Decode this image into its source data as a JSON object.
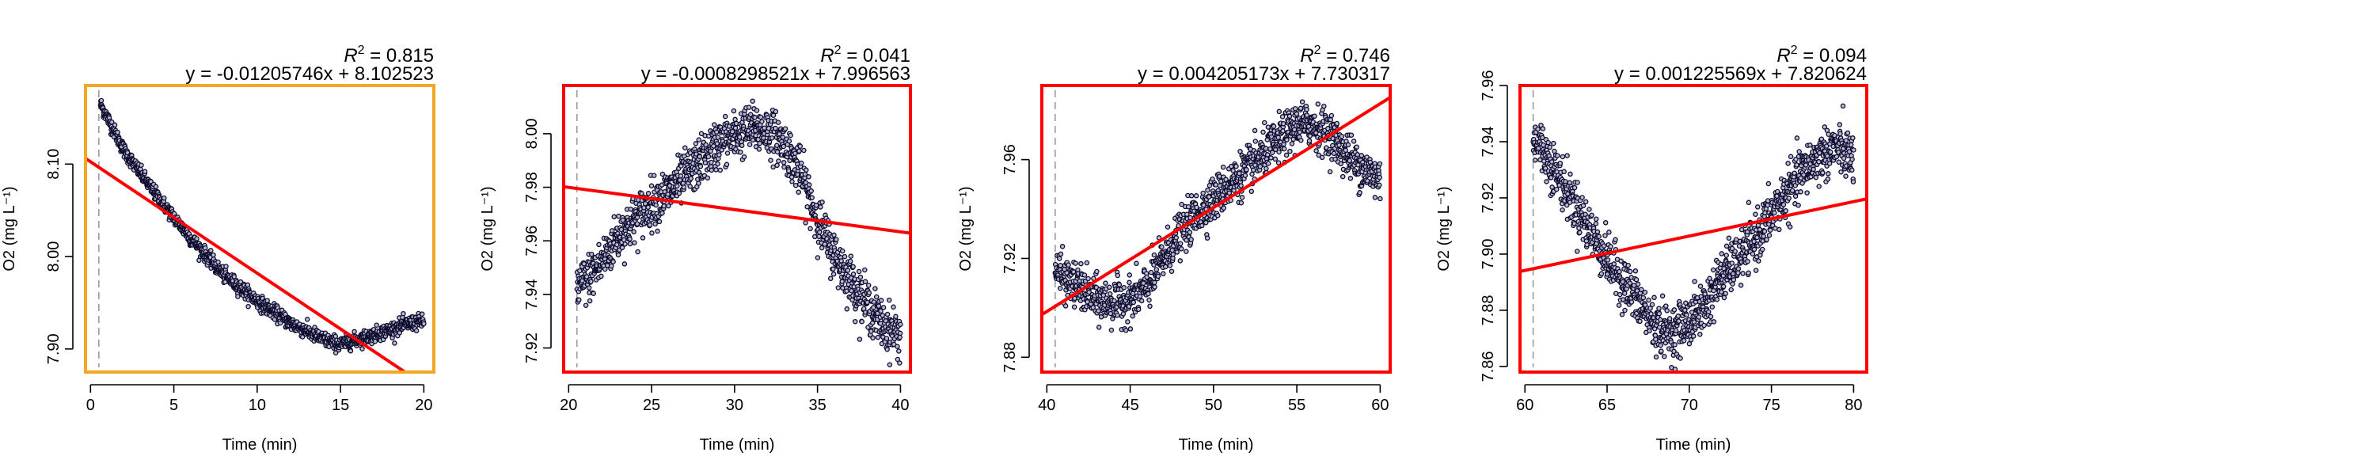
{
  "chart_data": [
    {
      "type": "scatter",
      "title": "",
      "r2_label": "R",
      "r2_sup": "2",
      "r2_value": " = 0.815",
      "equation": "y = -0.01205746x + 8.102523",
      "xlabel": "Time (min)",
      "ylabel": "O2 (mg L⁻¹)",
      "xlim": [
        -0.3,
        20.6
      ],
      "ylim": [
        7.875,
        8.185
      ],
      "xticks": [
        0,
        5,
        10,
        15,
        20
      ],
      "yticks": [
        7.9,
        8.0,
        8.1
      ],
      "ytick_labels": [
        "7.90",
        "8.00",
        "8.10"
      ],
      "frame_color": "#f5a623",
      "line_color": "#ff0000",
      "point_color": "#0d0d2b",
      "dashed_x": 0.5,
      "fit": {
        "slope": -0.01205746,
        "intercept": 8.102523
      },
      "curve": {
        "x": [
          0.6,
          2,
          4,
          6,
          8,
          10,
          12,
          14,
          15,
          16,
          17.5,
          19,
          20
        ],
        "y": [
          8.165,
          8.115,
          8.065,
          8.02,
          7.98,
          7.952,
          7.928,
          7.91,
          7.905,
          7.91,
          7.918,
          7.927,
          7.93
        ]
      },
      "noise": 0.004,
      "n_points": 1150
    },
    {
      "type": "scatter",
      "title": "",
      "r2_label": "R",
      "r2_sup": "2",
      "r2_value": " = 0.041",
      "equation": "y = -0.0008298521x + 7.996563",
      "xlabel": "Time (min)",
      "ylabel": "O2 (mg L⁻¹)",
      "xlim": [
        19.7,
        40.6
      ],
      "ylim": [
        7.911,
        8.018
      ],
      "xticks": [
        20,
        25,
        30,
        35,
        40
      ],
      "yticks": [
        7.92,
        7.94,
        7.96,
        7.98,
        8.0
      ],
      "ytick_labels": [
        "7.92",
        "7.94",
        "7.96",
        "7.98",
        "8.00"
      ],
      "frame_color": "#ff0000",
      "line_color": "#ff0000",
      "point_color": "#0d0d2b",
      "dashed_x": 20.5,
      "fit": {
        "slope": -0.0008298521,
        "intercept": 7.996563
      },
      "curve": {
        "x": [
          20.5,
          21,
          22,
          23,
          24,
          25,
          26,
          27,
          28,
          29,
          30,
          31,
          32,
          33,
          34,
          35,
          36,
          37,
          38,
          39,
          40
        ],
        "y": [
          7.942,
          7.945,
          7.952,
          7.962,
          7.968,
          7.974,
          7.978,
          7.984,
          7.99,
          7.996,
          7.999,
          8.002,
          8.001,
          7.996,
          7.985,
          7.968,
          7.955,
          7.945,
          7.936,
          7.928,
          7.925
        ]
      },
      "noise": 0.0045,
      "n_points": 1150
    },
    {
      "type": "scatter",
      "title": "",
      "r2_label": "R",
      "r2_sup": "2",
      "r2_value": " = 0.746",
      "equation": "y = 0.004205173x + 7.730317",
      "xlabel": "Time (min)",
      "ylabel": "O2 (mg L⁻¹)",
      "xlim": [
        39.7,
        60.6
      ],
      "ylim": [
        7.874,
        7.99
      ],
      "xticks": [
        40,
        45,
        50,
        55,
        60
      ],
      "yticks": [
        7.88,
        7.92,
        7.96
      ],
      "ytick_labels": [
        "7.88",
        "7.92",
        "7.96"
      ],
      "frame_color": "#ff0000",
      "line_color": "#ff0000",
      "point_color": "#0d0d2b",
      "dashed_x": 40.5,
      "fit": {
        "slope": 0.004205173,
        "intercept": 7.730317
      },
      "curve": {
        "x": [
          40.5,
          41,
          42,
          43,
          44,
          45,
          46,
          47,
          48,
          49,
          50,
          51,
          52,
          53,
          54,
          55,
          56,
          57,
          58,
          59,
          60
        ],
        "y": [
          7.916,
          7.912,
          7.908,
          7.903,
          7.902,
          7.903,
          7.908,
          7.92,
          7.93,
          7.938,
          7.944,
          7.95,
          7.956,
          7.962,
          7.968,
          7.974,
          7.974,
          7.97,
          7.962,
          7.956,
          7.952
        ]
      },
      "noise": 0.0045,
      "n_points": 1150
    },
    {
      "type": "scatter",
      "title": "",
      "r2_label": "R",
      "r2_sup": "2",
      "r2_value": " = 0.094",
      "equation": "y = 0.001225569x + 7.820624",
      "xlabel": "Time (min)",
      "ylabel": "O2 (mg L⁻¹)",
      "xlim": [
        59.7,
        80.8
      ],
      "ylim": [
        7.858,
        7.96
      ],
      "xticks": [
        60,
        65,
        70,
        75,
        80
      ],
      "yticks": [
        7.86,
        7.88,
        7.9,
        7.92,
        7.94,
        7.96
      ],
      "ytick_labels": [
        "7.86",
        "7.88",
        "7.90",
        "7.92",
        "7.94",
        "7.96"
      ],
      "frame_color": "#ff0000",
      "line_color": "#ff0000",
      "point_color": "#0d0d2b",
      "dashed_x": 60.5,
      "fit": {
        "slope": 0.001225569,
        "intercept": 7.820624
      },
      "curve": {
        "x": [
          60.5,
          61,
          62,
          63,
          64,
          65,
          66,
          67,
          68,
          69,
          70,
          71,
          72,
          73,
          74,
          75,
          76,
          77,
          78,
          79,
          80
        ],
        "y": [
          7.942,
          7.938,
          7.928,
          7.918,
          7.908,
          7.898,
          7.89,
          7.882,
          7.874,
          7.872,
          7.876,
          7.882,
          7.892,
          7.898,
          7.905,
          7.914,
          7.922,
          7.93,
          7.935,
          7.938,
          7.934
        ]
      },
      "noise": 0.0045,
      "n_points": 1150
    }
  ]
}
